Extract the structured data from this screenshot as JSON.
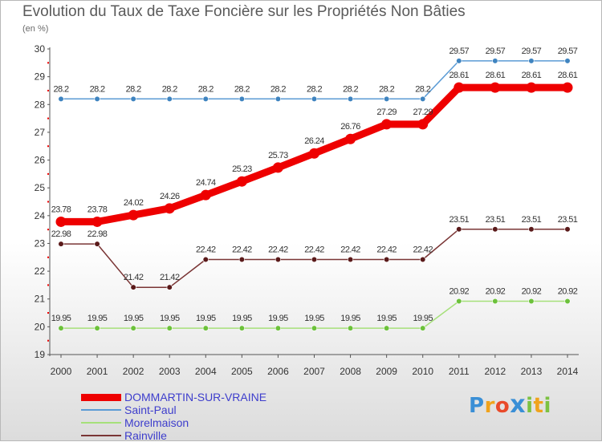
{
  "chart_data": {
    "type": "line",
    "title": "Evolution du Taux de Taxe Foncière sur les Propriétés Non Bâties",
    "subtitle": "(en %)",
    "xlabel": "",
    "ylabel": "",
    "x": [
      2000,
      2001,
      2002,
      2003,
      2004,
      2005,
      2006,
      2007,
      2008,
      2009,
      2010,
      2011,
      2012,
      2013,
      2014
    ],
    "ylim": [
      19,
      30
    ],
    "yticks": [
      19,
      20,
      21,
      22,
      23,
      24,
      25,
      26,
      27,
      28,
      29,
      30
    ],
    "grid": false,
    "series": [
      {
        "name": "DOMMARTIN-SUR-VRAINE",
        "color": "#ee0000",
        "emphasis": true,
        "values": [
          23.78,
          23.78,
          24.02,
          24.26,
          24.74,
          25.23,
          25.73,
          26.24,
          26.76,
          27.29,
          27.29,
          28.61,
          28.61,
          28.61,
          28.61
        ],
        "labels": [
          "23.78",
          "23.78",
          "24.02",
          "24.26",
          "24.74",
          "25.23",
          "25.73",
          "26.24",
          "26.76",
          "27.29",
          "27.29",
          "28.61",
          "28.61",
          "28.61",
          "28.61"
        ]
      },
      {
        "name": "Saint-Paul",
        "color": "#5b9bd5",
        "marker": "#3f84c0",
        "values": [
          28.2,
          28.2,
          28.2,
          28.2,
          28.2,
          28.2,
          28.2,
          28.2,
          28.2,
          28.2,
          28.2,
          29.57,
          29.57,
          29.57,
          29.57
        ],
        "labels": [
          "28.2",
          "28.2",
          "28.2",
          "28.2",
          "28.2",
          "28.2",
          "28.2",
          "28.2",
          "28.2",
          "28.2",
          "28.2",
          "29.57",
          "29.57",
          "29.57",
          "29.57"
        ]
      },
      {
        "name": "Morelmaison",
        "color": "#a6e07a",
        "marker": "#6cc13b",
        "values": [
          19.95,
          19.95,
          19.95,
          19.95,
          19.95,
          19.95,
          19.95,
          19.95,
          19.95,
          19.95,
          19.95,
          20.92,
          20.92,
          20.92,
          20.92
        ],
        "labels": [
          "19.95",
          "19.95",
          "19.95",
          "19.95",
          "19.95",
          "19.95",
          "19.95",
          "19.95",
          "19.95",
          "19.95",
          "19.95",
          "20.92",
          "20.92",
          "20.92",
          "20.92"
        ]
      },
      {
        "name": "Rainville",
        "color": "#7a3535",
        "marker": "#5a1a1a",
        "values": [
          22.98,
          22.98,
          21.42,
          21.42,
          22.42,
          22.42,
          22.42,
          22.42,
          22.42,
          22.42,
          22.42,
          23.51,
          23.51,
          23.51,
          23.51
        ],
        "labels": [
          "22.98",
          "22.98",
          "21.42",
          "21.42",
          "22.42",
          "22.42",
          "22.42",
          "22.42",
          "22.42",
          "22.42",
          "22.42",
          "23.51",
          "23.51",
          "23.51",
          "23.51"
        ]
      }
    ]
  },
  "brand": {
    "letters": [
      "P",
      "r",
      "o",
      "x",
      "i",
      "t",
      "i"
    ],
    "colors": [
      "#3a8fd6",
      "#f0a31c",
      "#e94a2a",
      "#3a8fd6",
      "#7cc242",
      "#f0a31c",
      "#7cc242"
    ]
  }
}
